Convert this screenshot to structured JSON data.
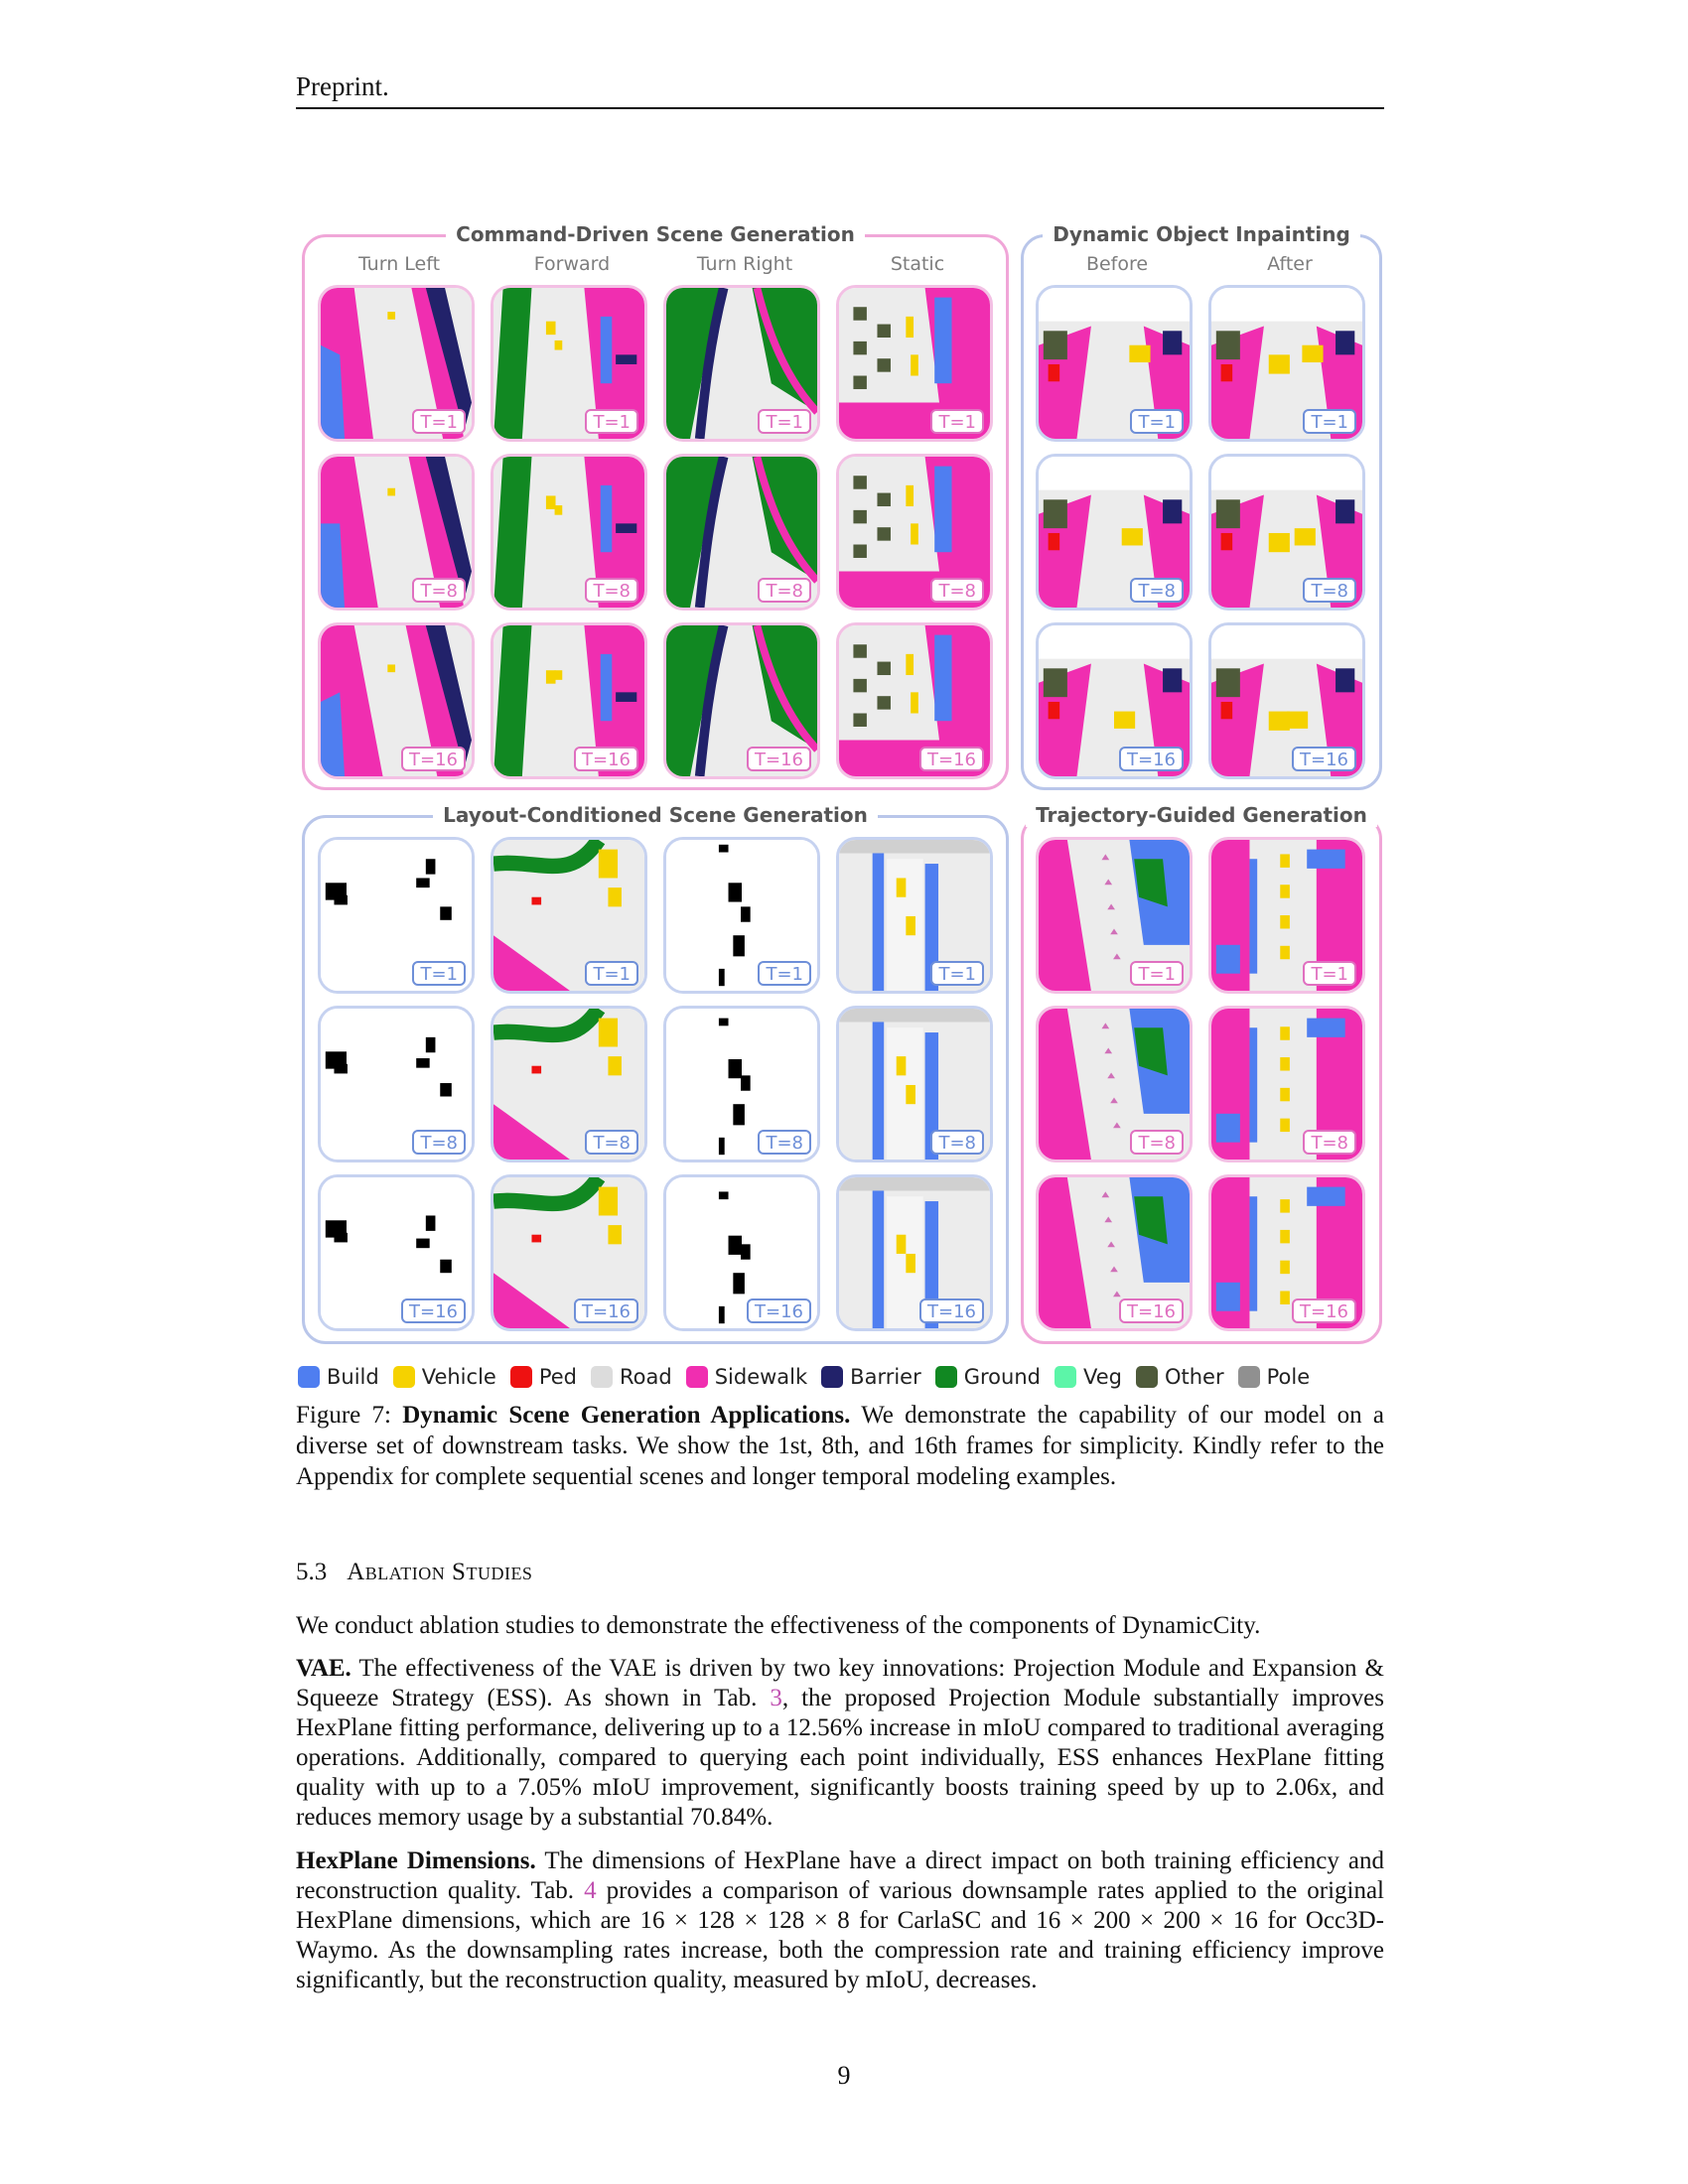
{
  "header": "Preprint.",
  "groups": {
    "command": {
      "title": "Command-Driven Scene Generation",
      "columns": [
        "Turn Left",
        "Forward",
        "Turn Right",
        "Static"
      ]
    },
    "inpainting": {
      "title": "Dynamic Object Inpainting",
      "columns": [
        "Before",
        "After"
      ]
    },
    "layout": {
      "title": "Layout-Conditioned Scene Generation"
    },
    "trajectory": {
      "title": "Trajectory-Guided Generation"
    }
  },
  "frame_labels": [
    "T=1",
    "T=8",
    "T=16"
  ],
  "legend": [
    {
      "label": "Build",
      "color": "#4f7ef0"
    },
    {
      "label": "Vehicle",
      "color": "#f5d200"
    },
    {
      "label": "Ped",
      "color": "#ee1111"
    },
    {
      "label": "Road",
      "color": "#dcdcdc"
    },
    {
      "label": "Sidewalk",
      "color": "#f02eb0"
    },
    {
      "label": "Barrier",
      "color": "#22226a"
    },
    {
      "label": "Ground",
      "color": "#118822"
    },
    {
      "label": "Veg",
      "color": "#5cf5a8"
    },
    {
      "label": "Other",
      "color": "#4e5a3a"
    },
    {
      "label": "Pole",
      "color": "#909090"
    }
  ],
  "caption": {
    "label": "Figure 7:",
    "title": "Dynamic Scene Generation Applications.",
    "text": "We demonstrate the capability of our model on a diverse set of downstream tasks. We show the 1st, 8th, and 16th frames for simplicity. Kindly refer to the Appendix for complete sequential scenes and longer temporal modeling examples."
  },
  "section": {
    "number": "5.3",
    "title": "Ablation Studies"
  },
  "paragraphs": {
    "intro": "We conduct ablation studies to demonstrate the effectiveness of the components of DynamicCity.",
    "vae": {
      "title": "VAE.",
      "text_a": "The effectiveness of the VAE is driven by two key innovations: Projection Module and Expansion & Squeeze Strategy (ESS). As shown in Tab.",
      "ref": "3",
      "text_b": ", the proposed Projection Module substantially improves HexPlane fitting performance, delivering up to a 12.56% increase in mIoU compared to traditional averaging operations. Additionally, compared to querying each point individually, ESS enhances HexPlane fitting quality with up to a 7.05% mIoU improvement, significantly boosts training speed by up to 2.06x, and reduces memory usage by a substantial 70.84%."
    },
    "hexplane": {
      "title": "HexPlane Dimensions.",
      "text_a": "The dimensions of HexPlane have a direct impact on both training efficiency and reconstruction quality. Tab.",
      "ref": "4",
      "text_b": "provides a comparison of various downsample rates applied to the original HexPlane dimensions, which are 16 × 128 × 128 × 8 for CarlaSC and 16 × 200 × 200 × 16 for Occ3D-Waymo. As the downsampling rates increase, both the compression rate and training efficiency improve significantly, but the reconstruction quality, measured by mIoU, decreases."
    }
  },
  "page_number": "9"
}
